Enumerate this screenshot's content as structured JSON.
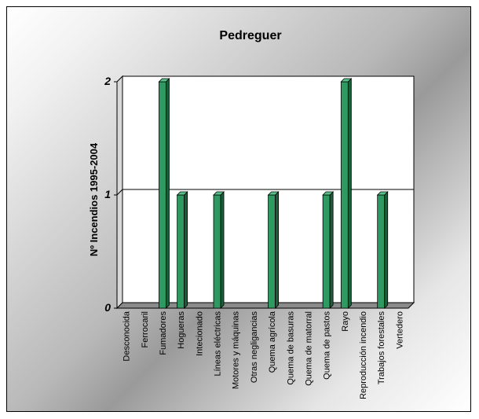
{
  "chart_data": {
    "type": "bar",
    "title": "Pedreguer",
    "xlabel": "",
    "ylabel": "Nº Incendios 1995-2004",
    "ylim": [
      0,
      2
    ],
    "yticks": [
      "0",
      "1",
      "2"
    ],
    "grid": true,
    "legend": "none",
    "categories": [
      "Desconocida",
      "Ferrocaril",
      "Fumadores",
      "Hogueras",
      "Intecionado",
      "Líneas eléctricas",
      "Motores y máquinas",
      "Otras negligancias",
      "Quema agrícola",
      "Quema de basuras",
      "Quema de matorral",
      "Quema de pastos",
      "Rayo",
      "Reproducción incendio",
      "Trabajos forestales",
      "Vertedero"
    ],
    "values": [
      0,
      0,
      2,
      1,
      0,
      1,
      0,
      0,
      1,
      0,
      0,
      1,
      2,
      0,
      1,
      0
    ],
    "colors": {
      "bar_front": "#2e9a62",
      "bar_side": "#1b5e3a",
      "bar_top": "#58c088",
      "plot_back": "#ffffff",
      "floor": "#8a8a8a"
    }
  }
}
